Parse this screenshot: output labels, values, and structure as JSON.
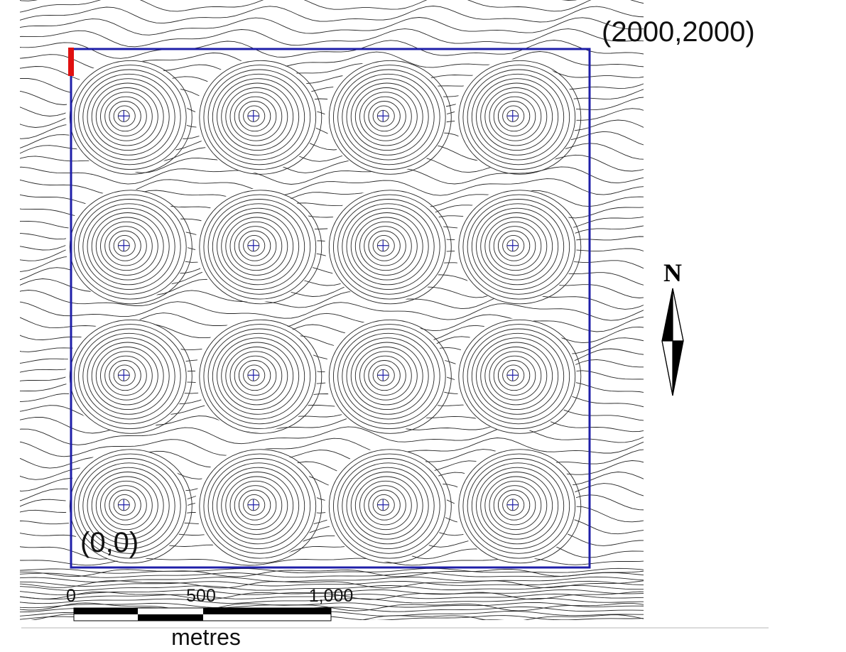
{
  "map": {
    "corner_top_right": "(2000,2000)",
    "corner_bottom_left": "(0,0)",
    "boundary_color": "#1f1fa8",
    "marker_color": "#e01010",
    "contour_color": "#262626",
    "grid": {
      "rows": 4,
      "cols": 4
    }
  },
  "north_arrow": {
    "label": "N",
    "icon": "north-arrow-icon"
  },
  "scale_bar": {
    "ticks": [
      "0",
      "500",
      "1,000"
    ],
    "unit": "metres",
    "segment_colors": [
      "#000000",
      "#ffffff",
      "#000000",
      "#000000"
    ]
  }
}
